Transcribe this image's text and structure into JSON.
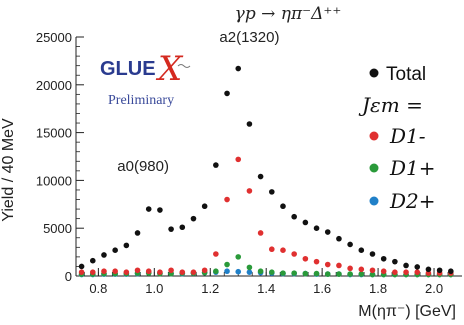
{
  "chart_data": {
    "type": "scatter",
    "title": "γp → ηπ⁻Δ⁺⁺",
    "xlabel": "M(ηπ⁻) [GeV]",
    "ylabel": "Yield / 40 MeV",
    "xlim": [
      0.72,
      2.1
    ],
    "ylim": [
      0,
      25000
    ],
    "x_ticks": [
      0.8,
      1.0,
      1.2,
      1.4,
      1.6,
      1.8,
      2.0
    ],
    "x_tick_labels": [
      "0.8",
      "1.0",
      "1.2",
      "1.4",
      "1.6",
      "1.8",
      "2.0"
    ],
    "y_ticks": [
      0,
      5000,
      10000,
      15000,
      20000,
      25000
    ],
    "y_tick_labels": [
      "0",
      "5000",
      "10000",
      "15000",
      "20000",
      "25000"
    ],
    "grid": false,
    "legend_position": "right",
    "legend_header": "Jεm =",
    "logo": {
      "text": "GLUE",
      "x_mark": "X",
      "subtitle": "Preliminary"
    },
    "annotations": [
      {
        "text": "a0(980)",
        "x": 0.96,
        "y": 11000
      },
      {
        "text": "a2(1320)",
        "x": 1.34,
        "y": 24500
      }
    ],
    "series": [
      {
        "name": "Total",
        "color": "#111111",
        "x": [
          0.74,
          0.78,
          0.82,
          0.86,
          0.9,
          0.94,
          0.98,
          1.02,
          1.06,
          1.1,
          1.14,
          1.18,
          1.22,
          1.26,
          1.3,
          1.34,
          1.38,
          1.42,
          1.46,
          1.5,
          1.54,
          1.58,
          1.62,
          1.66,
          1.7,
          1.74,
          1.78,
          1.82,
          1.86,
          1.9,
          1.94,
          1.98,
          2.02,
          2.06
        ],
        "y": [
          1000,
          1600,
          2200,
          2700,
          3200,
          4500,
          7000,
          6900,
          4900,
          5100,
          6000,
          7300,
          11600,
          19100,
          21700,
          15900,
          10400,
          8800,
          7300,
          6200,
          5600,
          5000,
          4600,
          3900,
          3300,
          2700,
          2300,
          1800,
          1500,
          1100,
          950,
          700,
          600,
          500
        ]
      },
      {
        "name": "D1-",
        "color": "#e03030",
        "x": [
          0.74,
          0.78,
          0.82,
          0.86,
          0.9,
          0.94,
          0.98,
          1.02,
          1.06,
          1.1,
          1.14,
          1.18,
          1.22,
          1.26,
          1.3,
          1.34,
          1.38,
          1.42,
          1.46,
          1.5,
          1.54,
          1.58,
          1.62,
          1.66,
          1.7,
          1.74,
          1.78,
          1.82,
          1.86,
          1.9,
          1.94,
          1.98,
          2.02,
          2.06
        ],
        "y": [
          400,
          400,
          500,
          500,
          400,
          600,
          500,
          400,
          600,
          400,
          400,
          600,
          2300,
          8000,
          12200,
          8900,
          4500,
          2800,
          2700,
          2300,
          1800,
          1500,
          1200,
          1100,
          800,
          700,
          600,
          500,
          400,
          400,
          400,
          300,
          300,
          300
        ]
      },
      {
        "name": "D1+",
        "color": "#2a9a3a",
        "x": [
          0.74,
          0.78,
          0.82,
          0.86,
          0.9,
          0.94,
          0.98,
          1.02,
          1.06,
          1.1,
          1.14,
          1.18,
          1.22,
          1.26,
          1.3,
          1.34,
          1.38,
          1.42,
          1.46,
          1.5,
          1.54,
          1.58,
          1.62,
          1.66,
          1.7,
          1.74,
          1.78,
          1.82,
          1.86,
          1.9,
          1.94,
          1.98,
          2.02,
          2.06
        ],
        "y": [
          200,
          200,
          250,
          250,
          250,
          300,
          300,
          250,
          250,
          300,
          300,
          350,
          500,
          1200,
          2000,
          900,
          500,
          400,
          300,
          300,
          250,
          250,
          200,
          200,
          200,
          200,
          150,
          150,
          150,
          150,
          150,
          150,
          150,
          150
        ]
      },
      {
        "name": "D2+",
        "color": "#2080c8",
        "x": [
          0.74,
          0.78,
          0.82,
          0.86,
          0.9,
          0.94,
          0.98,
          1.02,
          1.06,
          1.1,
          1.14,
          1.18,
          1.22,
          1.26,
          1.3,
          1.34,
          1.38,
          1.42,
          1.46,
          1.5,
          1.54,
          1.58,
          1.62,
          1.66,
          1.7,
          1.74,
          1.78,
          1.82,
          1.86,
          1.9,
          1.94,
          1.98,
          2.02,
          2.06
        ],
        "y": [
          150,
          150,
          200,
          200,
          200,
          250,
          350,
          300,
          250,
          250,
          300,
          350,
          400,
          500,
          450,
          400,
          350,
          300,
          250,
          250,
          250,
          200,
          200,
          200,
          150,
          150,
          150,
          150,
          150,
          150,
          150,
          150,
          150,
          150
        ]
      }
    ]
  }
}
